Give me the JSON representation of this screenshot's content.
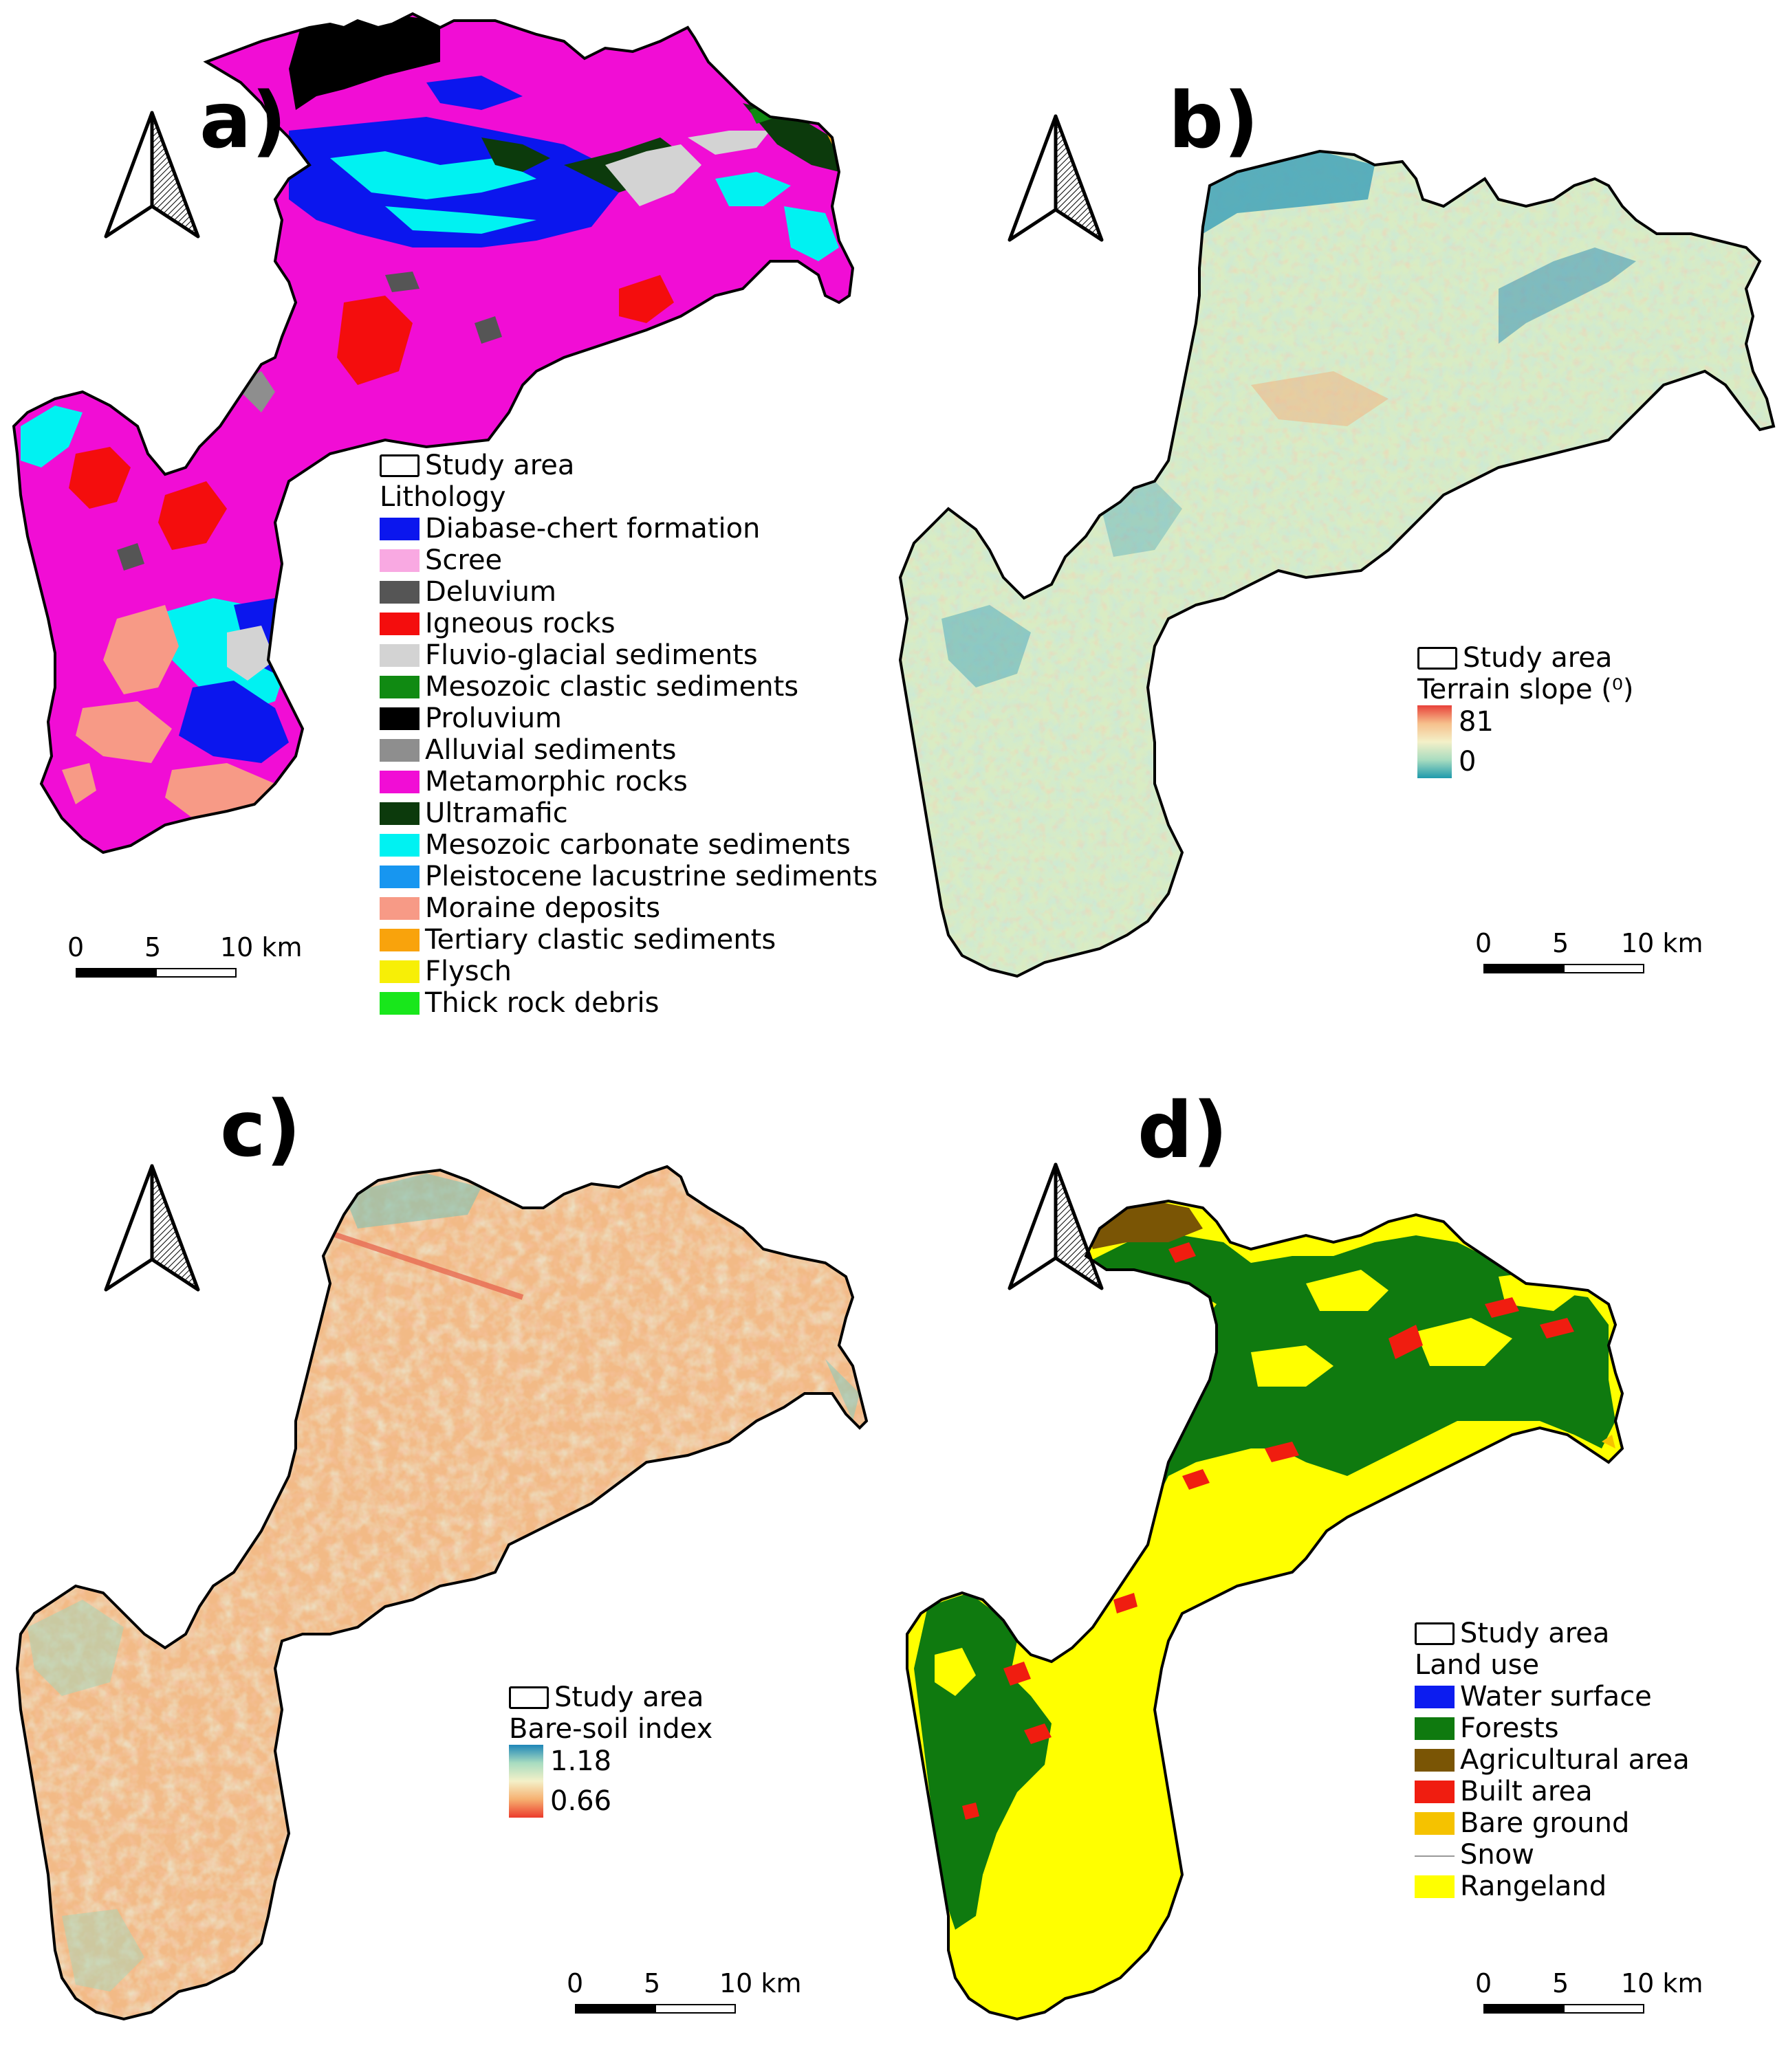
{
  "panels": {
    "a": {
      "label": "a)",
      "legend": {
        "boundary_label": "Study area",
        "title": "Lithology",
        "items": [
          {
            "label": "Diabase-chert formation",
            "color": "#0b16ee"
          },
          {
            "label": "Scree",
            "color": "#f9a9e2"
          },
          {
            "label": "Deluvium",
            "color": "#555555"
          },
          {
            "label": "Igneous rocks",
            "color": "#f40d0d"
          },
          {
            "label": "Fluvio-glacial sediments",
            "color": "#d3d3d3"
          },
          {
            "label": "Mesozoic clastic sediments",
            "color": "#108a12"
          },
          {
            "label": "Proluvium",
            "color": "#000000"
          },
          {
            "label": "Alluvial sediments",
            "color": "#8e8e8e"
          },
          {
            "label": "Metamorphic rocks",
            "color": "#f10dd5"
          },
          {
            "label": "Ultramafic",
            "color": "#0c3a0c"
          },
          {
            "label": "Mesozoic carbonate sediments",
            "color": "#00f2f2"
          },
          {
            "label": "Pleistocene lacustrine sediments",
            "color": "#1796f0"
          },
          {
            "label": "Moraine deposits",
            "color": "#f79a86"
          },
          {
            "label": "Tertiary clastic sediments",
            "color": "#f9a30c"
          },
          {
            "label": "Flysch",
            "color": "#f7ef06"
          },
          {
            "label": "Thick rock debris",
            "color": "#18e71b"
          }
        ]
      },
      "scale": {
        "ticks": [
          "0",
          "5",
          "10 km"
        ]
      }
    },
    "b": {
      "label": "b)",
      "legend": {
        "boundary_label": "Study area",
        "title": "Terrain slope (⁰)",
        "max": "81",
        "min": "0",
        "ramp": [
          "#e8413a",
          "#f6c08c",
          "#f4f0c8",
          "#a8dcc0",
          "#1e9aac"
        ]
      },
      "scale": {
        "ticks": [
          "0",
          "5",
          "10 km"
        ]
      }
    },
    "c": {
      "label": "c)",
      "legend": {
        "boundary_label": "Study area",
        "title": "Bare-soil index",
        "max": "1.18",
        "min": "0.66",
        "ramp": [
          "#1e86b8",
          "#a8dcc0",
          "#f4f0c8",
          "#f6b070",
          "#ec3b2c"
        ]
      },
      "scale": {
        "ticks": [
          "0",
          "5",
          "10 km"
        ]
      }
    },
    "d": {
      "label": "d)",
      "legend": {
        "boundary_label": "Study area",
        "title": "Land use",
        "items": [
          {
            "label": "Water surface",
            "color": "#0c1cf0"
          },
          {
            "label": "Forests",
            "color": "#0f7a0f"
          },
          {
            "label": "Agricultural area",
            "color": "#7a5505"
          },
          {
            "label": "Built area",
            "color": "#f01d10"
          },
          {
            "label": "Bare ground",
            "color": "#f5c200"
          },
          {
            "label": "Snow",
            "color": "#ffffff"
          },
          {
            "label": "Rangeland",
            "color": "#ffff00"
          }
        ]
      },
      "scale": {
        "ticks": [
          "0",
          "5",
          "10 km"
        ]
      }
    }
  }
}
